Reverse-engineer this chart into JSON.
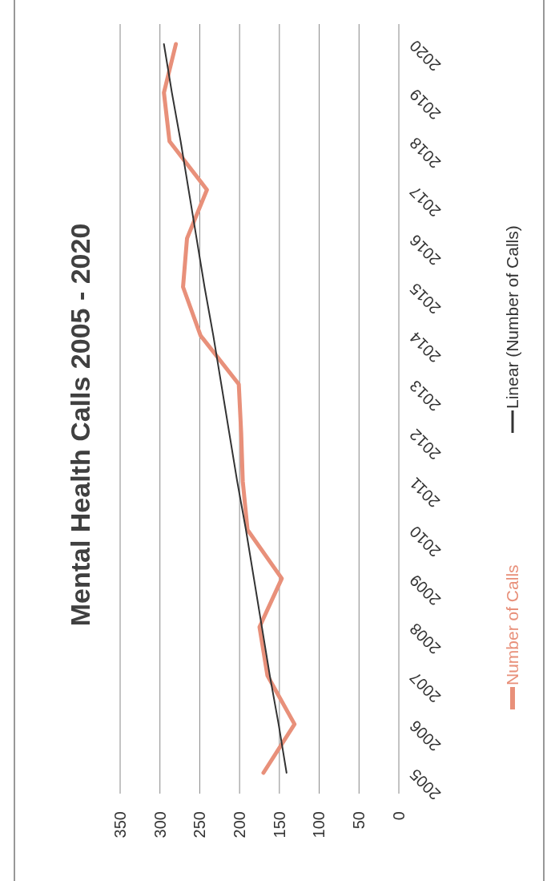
{
  "chart_data": {
    "type": "line",
    "title": "Mental Health Calls 2005 - 2020",
    "orientation": "horizontal",
    "categories": [
      "2020",
      "2019",
      "2018",
      "2017",
      "2016",
      "2015",
      "2014",
      "2013",
      "2012",
      "2011",
      "2010",
      "2009",
      "2008",
      "2007",
      "2006",
      "2005"
    ],
    "series": [
      {
        "name": "Number of Calls",
        "color": "#e8907a",
        "values": [
          280,
          295,
          288,
          241,
          266,
          271,
          249,
          201,
          198,
          196,
          190,
          147,
          175,
          165,
          131,
          170
        ]
      },
      {
        "name": "Linear (Number of Calls)",
        "type": "line",
        "color": "#333333",
        "values": [
          295,
          285,
          274,
          264,
          254,
          244,
          233,
          223,
          213,
          203,
          192,
          182,
          172,
          162,
          151,
          141
        ]
      }
    ],
    "xlim": [
      350,
      0
    ],
    "xticks": [
      350,
      300,
      250,
      200,
      150,
      100,
      50,
      0
    ],
    "grid": "x",
    "legend": "right"
  }
}
